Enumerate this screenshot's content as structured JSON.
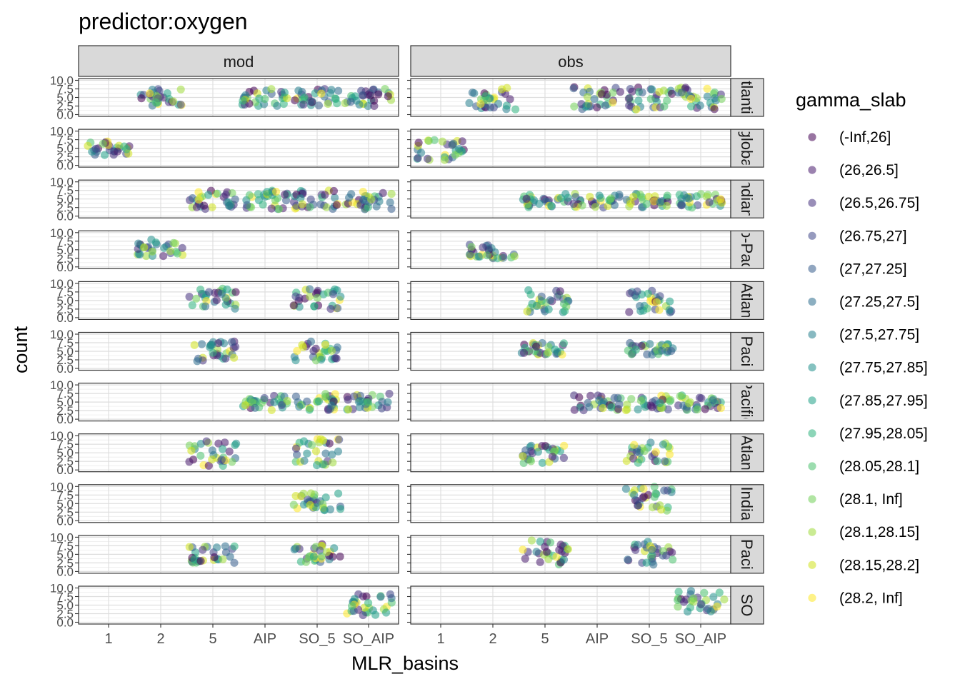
{
  "title": "predictor:oxygen",
  "x_axis_title": "MLR_basins",
  "y_axis_title": "count",
  "chart_data": {
    "type": "scatter",
    "title": "predictor:oxygen",
    "xlabel": "MLR_basins",
    "ylabel": "count",
    "x_categories": [
      "1",
      "2",
      "5",
      "AIP",
      "SO_5",
      "SO_AIP"
    ],
    "y_ticks": [
      "0.0",
      "2.5",
      "5.0",
      "7.5",
      "10.0"
    ],
    "ylim": [
      0,
      10
    ],
    "grid": true,
    "columns": [
      "mod",
      "obs"
    ],
    "rows": [
      {
        "label": "Atlantic",
        "shown": "tlanti"
      },
      {
        "label": "global",
        "shown": "globa"
      },
      {
        "label": "Indian",
        "shown": "ndian"
      },
      {
        "label": "Indo-Pacific",
        "shown": "o-Pac"
      },
      {
        "label": "SO_Atlantic",
        "shown": "Atlan"
      },
      {
        "label": "SO_Pacific",
        "shown": "Paci"
      },
      {
        "label": "Pacific",
        "shown": "Pacific"
      },
      {
        "label": "Atlantic",
        "shown": "Atlan"
      },
      {
        "label": "Indian",
        "shown": "India"
      },
      {
        "label": "Pacific",
        "shown": "Paci"
      },
      {
        "label": "SO",
        "shown": "SO"
      }
    ],
    "legend": {
      "title": "gamma_slab",
      "position": "right",
      "entries": [
        {
          "label": "(-Inf,26]",
          "color": "#440154"
        },
        {
          "label": "(26,26.5]",
          "color": "#481B6D"
        },
        {
          "label": "(26.5,26.75]",
          "color": "#46327E"
        },
        {
          "label": "(26.75,27]",
          "color": "#3F4788"
        },
        {
          "label": "(27,27.25]",
          "color": "#365C8D"
        },
        {
          "label": "(27.25,27.5]",
          "color": "#2E6E8E"
        },
        {
          "label": "(27.5,27.75]",
          "color": "#277F8E"
        },
        {
          "label": "(27.75,27.85]",
          "color": "#21908C"
        },
        {
          "label": "(27.85,27.95]",
          "color": "#1FA187"
        },
        {
          "label": "(27.95,28.05]",
          "color": "#2DB27D"
        },
        {
          "label": "(28.05,28.1]",
          "color": "#4AC16D"
        },
        {
          "label": "(28.1, Inf]",
          "color": "#71CF57"
        },
        {
          "label": "(28.1,28.15]",
          "color": "#9FDA3A"
        },
        {
          "label": "(28.15,28.2]",
          "color": "#CFE11C"
        },
        {
          "label": "(28.2, Inf]",
          "color": "#FDE725"
        }
      ]
    },
    "panels": [
      {
        "row": 0,
        "col": 0,
        "x": [
          "2",
          "AIP",
          "SO_5",
          "SO_AIP"
        ],
        "y_range": [
          2.5,
          7.5
        ]
      },
      {
        "row": 0,
        "col": 1,
        "x": [
          "2",
          "AIP",
          "SO_5",
          "SO_AIP"
        ],
        "y_range": [
          1.5,
          8
        ]
      },
      {
        "row": 1,
        "col": 0,
        "x": [
          "1"
        ],
        "y_range": [
          3,
          7
        ]
      },
      {
        "row": 1,
        "col": 1,
        "x": [
          "1"
        ],
        "y_range": [
          1.5,
          7.5
        ]
      },
      {
        "row": 2,
        "col": 0,
        "x": [
          "5",
          "AIP",
          "SO_5",
          "SO_AIP"
        ],
        "y_range": [
          2,
          7.5
        ]
      },
      {
        "row": 2,
        "col": 1,
        "x": [
          "5",
          "AIP",
          "SO_5",
          "SO_AIP"
        ],
        "y_range": [
          2.5,
          6.5
        ]
      },
      {
        "row": 3,
        "col": 0,
        "x": [
          "2"
        ],
        "y_range": [
          3,
          8
        ]
      },
      {
        "row": 3,
        "col": 1,
        "x": [
          "2"
        ],
        "y_range": [
          2.5,
          6.5
        ]
      },
      {
        "row": 4,
        "col": 0,
        "x": [
          "5",
          "SO_5"
        ],
        "y_range": [
          2.5,
          8.5
        ]
      },
      {
        "row": 4,
        "col": 1,
        "x": [
          "5",
          "SO_5"
        ],
        "y_range": [
          1.5,
          8
        ]
      },
      {
        "row": 5,
        "col": 0,
        "x": [
          "5",
          "SO_5"
        ],
        "y_range": [
          2,
          8
        ]
      },
      {
        "row": 5,
        "col": 1,
        "x": [
          "5",
          "SO_5"
        ],
        "y_range": [
          4,
          7.5
        ]
      },
      {
        "row": 6,
        "col": 0,
        "x": [
          "AIP",
          "SO_5",
          "SO_AIP"
        ],
        "y_range": [
          2.5,
          7.5
        ]
      },
      {
        "row": 6,
        "col": 1,
        "x": [
          "AIP",
          "SO_5",
          "SO_AIP"
        ],
        "y_range": [
          2.5,
          7
        ]
      },
      {
        "row": 7,
        "col": 0,
        "x": [
          "5",
          "SO_5"
        ],
        "y_range": [
          1,
          9
        ]
      },
      {
        "row": 7,
        "col": 1,
        "x": [
          "5",
          "SO_5"
        ],
        "y_range": [
          2,
          8
        ]
      },
      {
        "row": 8,
        "col": 0,
        "x": [
          "SO_5"
        ],
        "y_range": [
          3,
          8
        ]
      },
      {
        "row": 8,
        "col": 1,
        "x": [
          "SO_5"
        ],
        "y_range": [
          2.5,
          10
        ]
      },
      {
        "row": 9,
        "col": 0,
        "x": [
          "5",
          "SO_5"
        ],
        "y_range": [
          2.5,
          8
        ]
      },
      {
        "row": 9,
        "col": 1,
        "x": [
          "5",
          "SO_5"
        ],
        "y_range": [
          2,
          9.5
        ]
      },
      {
        "row": 10,
        "col": 0,
        "x": [
          "SO_AIP"
        ],
        "y_range": [
          2,
          8.5
        ]
      },
      {
        "row": 10,
        "col": 1,
        "x": [
          "SO_AIP"
        ],
        "y_range": [
          3,
          9.5
        ]
      }
    ]
  }
}
